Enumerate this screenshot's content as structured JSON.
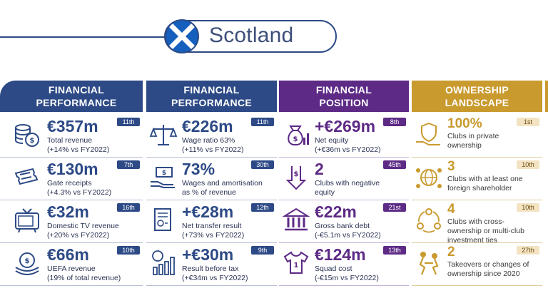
{
  "header": {
    "title": "Scotland",
    "flag_icon": "scotland-flag-icon"
  },
  "colors": {
    "navy": "#2d4a86",
    "purple": "#5d2a86",
    "gold": "#c99a2e"
  },
  "columns": [
    {
      "heading": [
        "FINANCIAL",
        "PERFORMANCE"
      ],
      "rows": [
        {
          "value": "€357m",
          "rank": "11th",
          "lines": [
            "Total revenue",
            "(+14% vs FY2022)"
          ],
          "icon": "coins-icon"
        },
        {
          "value": "€130m",
          "rank": "7th",
          "lines": [
            "Gate receipts",
            "(+4.3% vs FY2022)"
          ],
          "icon": "ticket-icon"
        },
        {
          "value": "€32m",
          "rank": "16th",
          "lines": [
            "Domestic TV revenue",
            "(+20% vs FY2022)"
          ],
          "icon": "tv-icon"
        },
        {
          "value": "€66m",
          "rank": "10th",
          "lines": [
            "UEFA revenue",
            "(19% of total revenue)"
          ],
          "icon": "uefa-coin-icon"
        }
      ]
    },
    {
      "heading": [
        "FINANCIAL",
        "PERFORMANCE"
      ],
      "rows": [
        {
          "value": "€226m",
          "rank": "11th",
          "lines": [
            "Wage ratio 63%",
            "(+11% vs FY2022)"
          ],
          "icon": "scales-icon"
        },
        {
          "value": "73%",
          "rank": "30th",
          "lines": [
            "Wages and amortisation",
            "as % of revenue"
          ],
          "icon": "hand-money-icon"
        },
        {
          "value": "+€28m",
          "rank": "12th",
          "lines": [
            "Net transfer result",
            "(+73% vs FY2022)"
          ],
          "icon": "document-icon"
        },
        {
          "value": "+€30m",
          "rank": "9th",
          "lines": [
            "Result before tax",
            "(+€34m vs FY2022)"
          ],
          "icon": "tax-chart-icon"
        }
      ]
    },
    {
      "heading": [
        "FINANCIAL",
        "POSITION"
      ],
      "rows": [
        {
          "value": "+€269m",
          "rank": "8th",
          "lines": [
            "Net equity",
            "(+€36m vs FY2022)"
          ],
          "icon": "money-bag-icon"
        },
        {
          "value": "2",
          "rank": "45th",
          "lines": [
            "Clubs with negative",
            "equity"
          ],
          "icon": "down-arrow-icon"
        },
        {
          "value": "€22m",
          "rank": "21st",
          "lines": [
            "Gross bank debt",
            "(-€5.1m vs FY2022)"
          ],
          "icon": "bank-icon"
        },
        {
          "value": "€124m",
          "rank": "13th",
          "lines": [
            "Squad cost",
            "(-€15m vs FY2022)"
          ],
          "icon": "shirt-icon"
        }
      ]
    },
    {
      "heading": [
        "OWNERSHIP",
        "LANDSCAPE"
      ],
      "rows": [
        {
          "value": "100%",
          "rank": "1st",
          "lines": [
            "Clubs in private",
            "ownership"
          ],
          "icon": "shield-hand-icon"
        },
        {
          "value": "3",
          "rank": "10th",
          "lines": [
            "Clubs with at least one",
            "foreign shareholder"
          ],
          "icon": "globe-people-icon"
        },
        {
          "value": "4",
          "rank": "10th",
          "lines": [
            "Clubs with cross-",
            "ownership or multi-club",
            "investment ties"
          ],
          "icon": "network-people-icon"
        },
        {
          "value": "2",
          "rank": "27th",
          "lines": [
            "Takeovers or changes of",
            "ownership since 2020"
          ],
          "icon": "handshake-icon"
        }
      ]
    }
  ]
}
